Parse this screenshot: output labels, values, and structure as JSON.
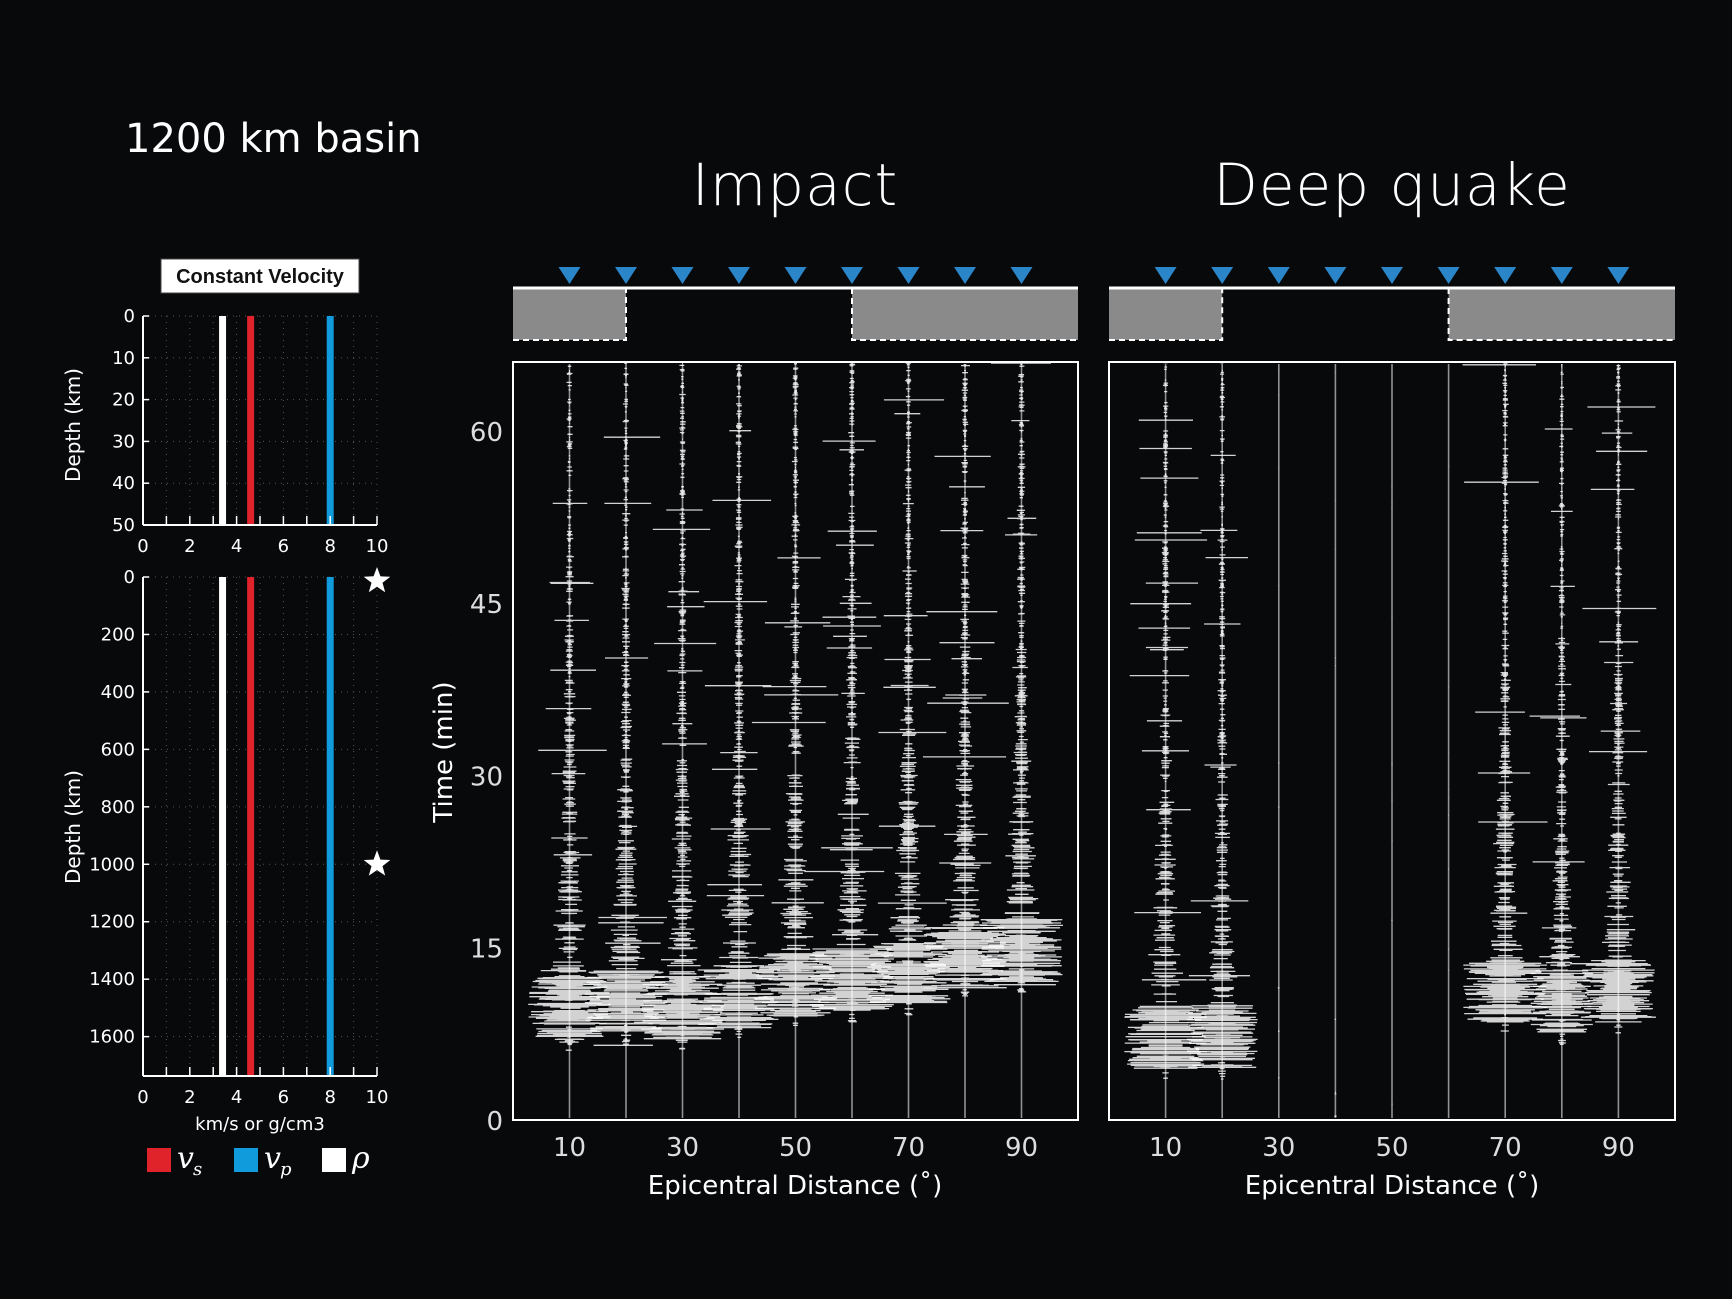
{
  "figure_title": "1200 km basin",
  "colors": {
    "vs": "#e0232a",
    "vp": "#0f9bdc",
    "rho": "#ffffff",
    "station": "#2b86c9",
    "basin": "#8a8a8a",
    "background": "#08090b"
  },
  "legend": [
    {
      "symbol": "v",
      "sub": "s",
      "color_key": "vs"
    },
    {
      "symbol": "v",
      "sub": "p",
      "color_key": "vp"
    },
    {
      "symbol": "ρ",
      "sub": "",
      "color_key": "rho"
    }
  ],
  "chart_data": [
    {
      "type": "line",
      "panel": "velocity-profile-shallow",
      "title": "Constant Velocity",
      "ylabel": "Depth (km)",
      "xlabel": "",
      "xlim": [
        0,
        10
      ],
      "ylim": [
        50,
        0
      ],
      "xticks": [
        "0",
        "2",
        "4",
        "6",
        "8",
        "10"
      ],
      "yticks": [
        "0",
        "10",
        "20",
        "30",
        "40",
        "50"
      ],
      "grid": true,
      "series": [
        {
          "name": "ρ",
          "x": [
            3.4,
            3.4
          ],
          "y": [
            0,
            50
          ]
        },
        {
          "name": "vs",
          "x": [
            4.6,
            4.6
          ],
          "y": [
            0,
            50
          ]
        },
        {
          "name": "vp",
          "x": [
            8.0,
            8.0
          ],
          "y": [
            0,
            50
          ]
        }
      ]
    },
    {
      "type": "line",
      "panel": "velocity-profile-deep",
      "title": "",
      "ylabel": "Depth (km)",
      "xlabel": "km/s or g/cm3",
      "xlim": [
        0,
        10
      ],
      "ylim": [
        1737,
        0
      ],
      "xticks": [
        "0",
        "2",
        "4",
        "6",
        "8",
        "10"
      ],
      "yticks": [
        "0",
        "200",
        "400",
        "600",
        "800",
        "1000",
        "1200",
        "1400",
        "1600"
      ],
      "grid": true,
      "source_markers_depth": [
        0,
        1000
      ],
      "series": [
        {
          "name": "ρ",
          "x": [
            3.4,
            3.4
          ],
          "y": [
            0,
            1737
          ]
        },
        {
          "name": "vs",
          "x": [
            4.6,
            4.6
          ],
          "y": [
            0,
            1737
          ]
        },
        {
          "name": "vp",
          "x": [
            8.0,
            8.0
          ],
          "y": [
            0,
            1737
          ]
        }
      ]
    },
    {
      "type": "scatter",
      "panel": "seismogram-impact",
      "title": "Impact",
      "xlabel": "Epicentral Distance (˚)",
      "ylabel": "Time (min)",
      "xlim": [
        0,
        100
      ],
      "ylim": [
        0,
        66
      ],
      "xticks": [
        "10",
        "30",
        "50",
        "70",
        "90"
      ],
      "yticks": [
        "0",
        "15",
        "30",
        "45",
        "60"
      ],
      "stations_deg": [
        10,
        20,
        30,
        40,
        50,
        60,
        70,
        80,
        90
      ],
      "basin_deg": [
        20,
        60
      ],
      "arrivals_min": [
        8.5,
        9.0,
        8.5,
        9.5,
        10.5,
        11.0,
        11.5,
        13.0,
        13.5
      ],
      "trace_amplitude": [
        1,
        1,
        1,
        1,
        1,
        1,
        1,
        1,
        1
      ]
    },
    {
      "type": "scatter",
      "panel": "seismogram-deep-quake",
      "title": "Deep quake",
      "xlabel": "Epicentral Distance (˚)",
      "ylabel": "",
      "xlim": [
        0,
        100
      ],
      "ylim": [
        0,
        66
      ],
      "xticks": [
        "10",
        "30",
        "50",
        "70",
        "90"
      ],
      "yticks": [],
      "stations_deg": [
        10,
        20,
        30,
        40,
        50,
        60,
        70,
        80,
        90
      ],
      "basin_deg": [
        20,
        60
      ],
      "arrivals_min": [
        6.0,
        6.0,
        0,
        0,
        0,
        0,
        10.0,
        9.0,
        10.0
      ],
      "trace_amplitude": [
        1,
        0.85,
        0.08,
        0.06,
        0.06,
        0.05,
        1,
        0.75,
        0.9
      ]
    }
  ]
}
